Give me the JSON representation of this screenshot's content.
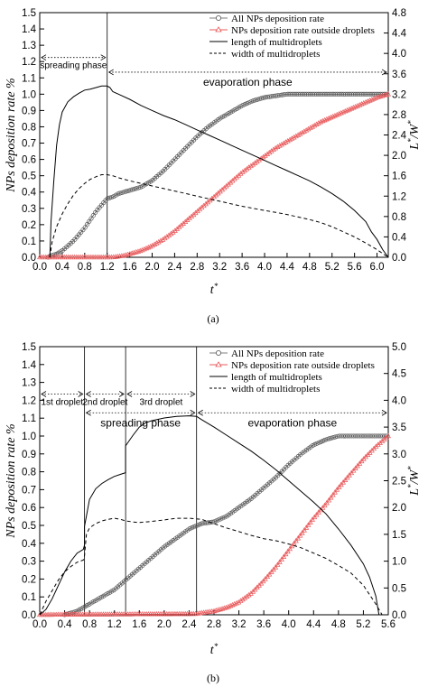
{
  "chart_data": [
    {
      "panel": "(a)",
      "type": "line",
      "xlabel": "t*",
      "ylabel_left": "NPs deposition rate %",
      "ylabel_right": "L*/W*",
      "xlim": [
        0.0,
        6.2
      ],
      "ylim_left": [
        0.0,
        1.5
      ],
      "ylim_right": [
        0.0,
        4.8
      ],
      "xticks": [
        "0.0",
        "0.4",
        "0.8",
        "1.2",
        "1.6",
        "2.0",
        "2.4",
        "2.8",
        "3.2",
        "3.6",
        "4.0",
        "4.4",
        "4.8",
        "5.2",
        "5.6",
        "6.0"
      ],
      "yticks_left": [
        "0.0",
        "0.1",
        "0.2",
        "0.3",
        "0.4",
        "0.5",
        "0.6",
        "0.7",
        "0.8",
        "0.9",
        "1.0",
        "1.1",
        "1.2",
        "1.3",
        "1.4",
        "1.5"
      ],
      "yticks_right": [
        "0.0",
        "0.4",
        "0.8",
        "1.2",
        "1.6",
        "2.0",
        "2.4",
        "2.8",
        "3.2",
        "3.6",
        "4.0",
        "4.4",
        "4.8"
      ],
      "legend": [
        "All NPs deposition rate",
        "NPs deposition rate outside droplets",
        "length of multidroplets",
        "width of multidroplets"
      ],
      "legend_placement": "top-right",
      "phase_lines": [
        1.2
      ],
      "annotations": [
        {
          "text": "spreading phase",
          "from": 0.0,
          "to": 1.2,
          "y": 1.225,
          "size": "small"
        },
        {
          "text": "evaporation phase",
          "from": 1.2,
          "to": 6.2,
          "y": 1.135,
          "size": "large"
        }
      ],
      "series": [
        {
          "name": "All NPs deposition rate",
          "axis": "left",
          "style": "circles",
          "color": "#555555",
          "x": [
            0.15,
            0.2,
            0.3,
            0.4,
            0.5,
            0.6,
            0.7,
            0.8,
            0.9,
            1.0,
            1.1,
            1.2,
            1.3,
            1.4,
            1.5,
            1.6,
            1.8,
            2.0,
            2.2,
            2.4,
            2.6,
            2.8,
            3.0,
            3.2,
            3.4,
            3.6,
            3.8,
            4.0,
            4.2,
            4.4,
            4.6,
            4.8,
            5.0,
            5.4,
            6.2
          ],
          "y": [
            0.0,
            0.01,
            0.02,
            0.04,
            0.07,
            0.1,
            0.14,
            0.18,
            0.23,
            0.28,
            0.32,
            0.36,
            0.37,
            0.39,
            0.4,
            0.41,
            0.43,
            0.47,
            0.53,
            0.6,
            0.67,
            0.74,
            0.8,
            0.85,
            0.89,
            0.93,
            0.96,
            0.98,
            0.99,
            1.0,
            1.0,
            1.0,
            1.0,
            1.0,
            1.0
          ]
        },
        {
          "name": "NPs deposition rate outside droplets",
          "axis": "left",
          "style": "triangles",
          "color": "#e8585a",
          "x": [
            0.0,
            1.3,
            1.4,
            1.5,
            1.6,
            1.8,
            2.0,
            2.2,
            2.4,
            2.6,
            2.8,
            3.0,
            3.2,
            3.4,
            3.6,
            3.8,
            4.0,
            4.2,
            4.4,
            4.6,
            4.8,
            5.0,
            5.2,
            5.4,
            5.6,
            5.8,
            6.0,
            6.2
          ],
          "y": [
            0.0,
            0.0,
            0.005,
            0.01,
            0.02,
            0.04,
            0.07,
            0.11,
            0.16,
            0.22,
            0.28,
            0.34,
            0.4,
            0.46,
            0.52,
            0.57,
            0.62,
            0.67,
            0.71,
            0.75,
            0.79,
            0.83,
            0.86,
            0.89,
            0.92,
            0.95,
            0.98,
            1.0
          ]
        },
        {
          "name": "length of multidroplets",
          "axis": "right",
          "style": "solid",
          "color": "#000000",
          "x": [
            0.18,
            0.2,
            0.25,
            0.3,
            0.35,
            0.4,
            0.5,
            0.6,
            0.7,
            0.8,
            0.9,
            1.0,
            1.1,
            1.2,
            1.25,
            1.3,
            1.4,
            1.6,
            1.8,
            2.0,
            2.2,
            2.4,
            2.6,
            2.8,
            3.0,
            3.2,
            3.4,
            3.6,
            3.8,
            4.0,
            4.2,
            4.4,
            4.6,
            4.8,
            5.0,
            5.2,
            5.4,
            5.6,
            5.8,
            5.9,
            6.0,
            6.1,
            6.2
          ],
          "y": [
            0.0,
            0.7,
            1.5,
            2.2,
            2.6,
            2.85,
            3.05,
            3.15,
            3.22,
            3.28,
            3.3,
            3.33,
            3.36,
            3.36,
            3.33,
            3.25,
            3.2,
            3.1,
            2.98,
            2.88,
            2.78,
            2.7,
            2.6,
            2.5,
            2.4,
            2.3,
            2.2,
            2.1,
            2.0,
            1.9,
            1.8,
            1.7,
            1.6,
            1.5,
            1.38,
            1.25,
            1.1,
            0.92,
            0.7,
            0.5,
            0.35,
            0.15,
            0.0
          ]
        },
        {
          "name": "width of multidroplets",
          "axis": "right",
          "style": "dashed",
          "color": "#000000",
          "x": [
            0.18,
            0.22,
            0.3,
            0.4,
            0.5,
            0.6,
            0.7,
            0.8,
            0.9,
            1.0,
            1.1,
            1.2,
            1.3,
            1.4,
            1.6,
            1.8,
            2.0,
            2.2,
            2.4,
            2.6,
            2.8,
            3.0,
            3.2,
            3.4,
            3.6,
            3.8,
            4.0,
            4.2,
            4.4,
            4.6,
            4.8,
            5.0,
            5.2,
            5.4,
            5.6,
            5.8,
            6.0,
            6.2
          ],
          "y": [
            0.0,
            0.3,
            0.6,
            0.85,
            1.05,
            1.22,
            1.35,
            1.45,
            1.53,
            1.58,
            1.62,
            1.62,
            1.6,
            1.56,
            1.5,
            1.45,
            1.4,
            1.35,
            1.3,
            1.25,
            1.2,
            1.15,
            1.1,
            1.05,
            1.0,
            0.96,
            0.92,
            0.88,
            0.84,
            0.79,
            0.74,
            0.68,
            0.6,
            0.5,
            0.4,
            0.28,
            0.15,
            0.0
          ]
        }
      ]
    },
    {
      "panel": "(b)",
      "type": "line",
      "xlabel": "t*",
      "ylabel_left": "NPs deposition rate %",
      "ylabel_right": "L*/W*",
      "xlim": [
        0.0,
        5.6
      ],
      "ylim_left": [
        0.0,
        1.5
      ],
      "ylim_right": [
        0.0,
        5.0
      ],
      "xticks": [
        "0.0",
        "0.4",
        "0.8",
        "1.2",
        "1.6",
        "2.0",
        "2.4",
        "2.8",
        "3.2",
        "3.6",
        "4.0",
        "4.4",
        "4.8",
        "5.2",
        "5.6"
      ],
      "yticks_left": [
        "0.0",
        "0.1",
        "0.2",
        "0.3",
        "0.4",
        "0.5",
        "0.6",
        "0.7",
        "0.8",
        "0.9",
        "1.0",
        "1.1",
        "1.2",
        "1.3",
        "1.4",
        "1.5"
      ],
      "yticks_right": [
        "0.0",
        "0.5",
        "1.0",
        "1.5",
        "2.0",
        "2.5",
        "3.0",
        "3.5",
        "4.0",
        "4.5",
        "5.0"
      ],
      "legend": [
        "All NPs deposition rate",
        "NPs deposition rate outside droplets",
        "length of multidroplets",
        "width of multidroplets"
      ],
      "legend_placement": "top-right",
      "phase_lines": [
        0.72,
        1.38,
        2.52
      ],
      "annotations": [
        {
          "text": "1st droplet",
          "from": 0.0,
          "to": 0.72,
          "y": 1.235,
          "size": "small"
        },
        {
          "text": "2nd droplet",
          "from": 0.72,
          "to": 1.38,
          "y": 1.235,
          "size": "small"
        },
        {
          "text": "3rd droplet",
          "from": 1.38,
          "to": 2.52,
          "y": 1.235,
          "size": "small"
        },
        {
          "text": "spreading phase",
          "from": 0.72,
          "to": 2.52,
          "y": 1.13,
          "size": "large"
        },
        {
          "text": "evaporation phase",
          "from": 2.52,
          "to": 5.6,
          "y": 1.13,
          "size": "large"
        }
      ],
      "series": [
        {
          "name": "All NPs deposition rate",
          "axis": "left",
          "style": "circles",
          "color": "#555555",
          "x": [
            0.4,
            0.5,
            0.6,
            0.7,
            0.75,
            0.8,
            1.0,
            1.2,
            1.4,
            1.6,
            1.8,
            2.0,
            2.2,
            2.4,
            2.6,
            2.8,
            3.0,
            3.2,
            3.4,
            3.6,
            3.8,
            4.0,
            4.2,
            4.4,
            4.6,
            4.8,
            5.0,
            5.2,
            5.4,
            5.6
          ],
          "y": [
            0.0,
            0.01,
            0.02,
            0.04,
            0.05,
            0.06,
            0.1,
            0.14,
            0.2,
            0.26,
            0.32,
            0.38,
            0.43,
            0.48,
            0.51,
            0.52,
            0.55,
            0.6,
            0.65,
            0.71,
            0.77,
            0.84,
            0.9,
            0.95,
            0.98,
            1.0,
            1.0,
            1.0,
            1.0,
            1.0
          ]
        },
        {
          "name": "NPs deposition rate outside droplets",
          "axis": "left",
          "style": "triangles",
          "color": "#e8585a",
          "x": [
            0.0,
            2.5,
            2.6,
            2.8,
            3.0,
            3.2,
            3.4,
            3.6,
            3.8,
            4.0,
            4.2,
            4.4,
            4.6,
            4.8,
            5.0,
            5.2,
            5.4,
            5.6
          ],
          "y": [
            0.0,
            0.005,
            0.01,
            0.02,
            0.04,
            0.07,
            0.12,
            0.19,
            0.27,
            0.36,
            0.45,
            0.54,
            0.62,
            0.71,
            0.79,
            0.87,
            0.94,
            1.0
          ]
        },
        {
          "name": "length of multidroplets",
          "axis": "right",
          "style": "solid",
          "color": "#000000",
          "x": [
            0.0,
            0.1,
            0.2,
            0.3,
            0.4,
            0.5,
            0.6,
            0.7,
            0.72,
            0.72,
            0.8,
            0.9,
            1.0,
            1.1,
            1.2,
            1.3,
            1.38,
            1.38,
            1.5,
            1.6,
            1.7,
            1.8,
            2.0,
            2.2,
            2.4,
            2.52,
            2.6,
            2.8,
            3.0,
            3.2,
            3.4,
            3.6,
            3.8,
            4.0,
            4.2,
            4.4,
            4.6,
            4.8,
            5.0,
            5.2,
            5.3,
            5.4,
            5.45
          ],
          "y": [
            0.0,
            0.1,
            0.3,
            0.55,
            0.8,
            1.0,
            1.15,
            1.22,
            1.3,
            1.65,
            2.15,
            2.35,
            2.45,
            2.52,
            2.58,
            2.62,
            2.65,
            3.15,
            3.35,
            3.5,
            3.58,
            3.62,
            3.67,
            3.7,
            3.71,
            3.7,
            3.64,
            3.5,
            3.35,
            3.2,
            3.05,
            2.88,
            2.7,
            2.5,
            2.3,
            2.1,
            1.88,
            1.6,
            1.3,
            0.95,
            0.7,
            0.35,
            0.0
          ]
        },
        {
          "name": "width of multidroplets",
          "axis": "right",
          "style": "dashed",
          "color": "#000000",
          "x": [
            0.0,
            0.1,
            0.2,
            0.3,
            0.4,
            0.5,
            0.6,
            0.7,
            0.72,
            0.75,
            0.8,
            0.9,
            1.0,
            1.1,
            1.2,
            1.3,
            1.38,
            1.5,
            1.6,
            1.8,
            2.0,
            2.2,
            2.4,
            2.6,
            2.8,
            3.0,
            3.2,
            3.4,
            3.6,
            3.8,
            4.0,
            4.2,
            4.4,
            4.6,
            4.8,
            5.0,
            5.2,
            5.4,
            5.5
          ],
          "y": [
            0.0,
            0.25,
            0.45,
            0.65,
            0.8,
            0.9,
            0.98,
            1.02,
            1.1,
            1.5,
            1.62,
            1.7,
            1.75,
            1.78,
            1.8,
            1.78,
            1.75,
            1.73,
            1.72,
            1.74,
            1.77,
            1.8,
            1.8,
            1.78,
            1.7,
            1.62,
            1.55,
            1.48,
            1.42,
            1.38,
            1.32,
            1.25,
            1.15,
            1.05,
            0.92,
            0.78,
            0.55,
            0.2,
            0.0
          ]
        }
      ]
    }
  ],
  "captions": [
    "(a)",
    "(b)"
  ]
}
